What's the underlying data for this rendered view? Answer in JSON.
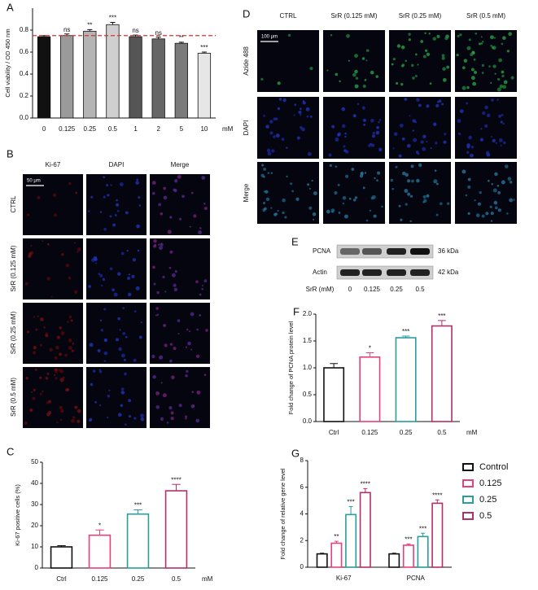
{
  "chart_data": [
    {
      "panel": "A",
      "type": "bar",
      "y_label": "Cell viability / OD 450 nm",
      "categories": [
        "0",
        "0.125",
        "0.25",
        "0.5",
        "1",
        "2",
        "5",
        "10"
      ],
      "x_unit": "mM",
      "values": [
        0.74,
        0.75,
        0.79,
        0.85,
        0.74,
        0.72,
        0.68,
        0.59
      ],
      "errors": [
        0.01,
        0.015,
        0.015,
        0.02,
        0.015,
        0.015,
        0.01,
        0.01
      ],
      "sig": [
        null,
        "ns",
        "**",
        "***",
        "ns",
        "ns",
        "**",
        "***"
      ],
      "colors": [
        "#111111",
        "#9a9a9a",
        "#b4b4b4",
        "#cfcfcf",
        "#555555",
        "#666666",
        "#7a7a7a",
        "#e6e6e6"
      ],
      "style": "filled",
      "ref_line": 0.75,
      "ref_color": "#e03030",
      "ylim": [
        0,
        1.0
      ],
      "yticks": [
        {
          "value": 0,
          "label": "0.0"
        },
        0.2,
        0.4,
        0.6,
        0.8
      ]
    },
    {
      "panel": "C",
      "type": "bar",
      "y_label": "Ki-67 positive cells (%)",
      "categories": [
        "Ctrl",
        "0.125",
        "0.25",
        "0.5"
      ],
      "x_unit": "mM",
      "values": [
        10,
        15.5,
        25.5,
        36.5
      ],
      "errors": [
        0.6,
        2.5,
        2,
        3
      ],
      "sig": [
        null,
        "*",
        "***",
        "****"
      ],
      "colors": [
        "#111111",
        "#e8407a",
        "#2a9d9d",
        "#b0306a"
      ],
      "style": "outline",
      "ylim": [
        0,
        50
      ],
      "yticks": [
        0,
        10,
        20,
        30,
        40,
        50
      ]
    },
    {
      "panel": "F",
      "type": "bar",
      "y_label": "Fold change of PCNA protein level",
      "categories": [
        "Ctrl",
        "0.125",
        "0.25",
        "0.5"
      ],
      "x_unit": "mM",
      "values": [
        1.0,
        1.2,
        1.56,
        1.78
      ],
      "errors": [
        0.08,
        0.08,
        0.03,
        0.1
      ],
      "sig": [
        null,
        "*",
        "***",
        "***"
      ],
      "colors": [
        "#111111",
        "#e8407a",
        "#2a9d9d",
        "#b0306a"
      ],
      "style": "outline",
      "ylim": [
        0,
        2.0
      ],
      "yticks": [
        {
          "value": 0,
          "label": "0.0"
        },
        0.5,
        {
          "value": 1,
          "label": "1.0"
        },
        1.5,
        {
          "value": 2,
          "label": "2.0"
        }
      ]
    },
    {
      "panel": "G",
      "type": "grouped_bar",
      "y_label": "Fold change of relative gene level",
      "categories": [
        "Ki-67",
        "PCNA"
      ],
      "style": "outline",
      "legend": "right",
      "series": [
        {
          "name": "Control",
          "color": "#111111",
          "values": [
            1.0,
            1.0
          ],
          "errors": [
            0.05,
            0.05
          ],
          "sig": [
            null,
            null
          ]
        },
        {
          "name": "0.125",
          "color": "#e8407a",
          "values": [
            1.8,
            1.65
          ],
          "errors": [
            0.15,
            0.1
          ],
          "sig": [
            "**",
            "***"
          ]
        },
        {
          "name": "0.25",
          "color": "#2a9d9d",
          "values": [
            3.95,
            2.3
          ],
          "errors": [
            0.6,
            0.25
          ],
          "sig": [
            "***",
            "***"
          ]
        },
        {
          "name": "0.5",
          "color": "#b0306a",
          "values": [
            5.6,
            4.8
          ],
          "errors": [
            0.3,
            0.25
          ],
          "sig": [
            "****",
            "****"
          ]
        }
      ],
      "ylim": [
        0,
        8
      ],
      "yticks": [
        0,
        2,
        4,
        6,
        8
      ]
    }
  ],
  "panel_b": {
    "panel": "B",
    "columns": [
      "Ki-67",
      "DAPI",
      "Merge"
    ],
    "rows": [
      "CTRL",
      "SrR (0.125 mM)",
      "SrR (0.25 mM)",
      "SrR (0.5 mM)"
    ],
    "scale_bar": "50 μm"
  },
  "panel_d": {
    "panel": "D",
    "columns": [
      "CTRL",
      "SrR (0.125 mM)",
      "SrR (0.25 mM)",
      "SrR (0.5 mM)"
    ],
    "rows": [
      "Azide 488",
      "DAPI",
      "Merge"
    ],
    "scale_bar": "100 μm"
  },
  "panel_e": {
    "panel": "E",
    "bands": [
      "PCNA",
      "Actin"
    ],
    "sizes": [
      "36 kDa",
      "42 kDa"
    ],
    "x_label": "SrR (mM)",
    "lanes": [
      "0",
      "0.125",
      "0.25",
      "0.5"
    ]
  }
}
